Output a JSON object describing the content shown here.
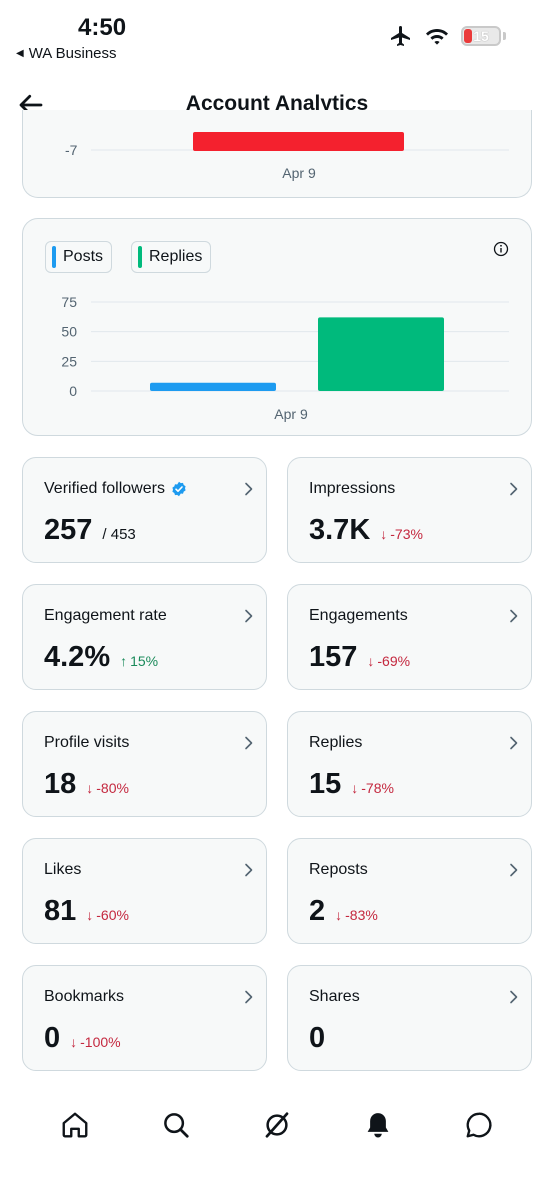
{
  "status_bar": {
    "time": "4:50",
    "back_app": "WA Business",
    "battery": "15"
  },
  "header": {
    "title": "Account Analytics"
  },
  "top_chart": {
    "tick_label": "-7",
    "x_label": "Apr 9",
    "bar_color": "#f4212e"
  },
  "chart_data": {
    "type": "bar",
    "categories": [
      "Apr 9"
    ],
    "series": [
      {
        "name": "Posts",
        "values": [
          7
        ],
        "color": "#1d9bf0"
      },
      {
        "name": "Replies",
        "values": [
          62
        ],
        "color": "#00ba7c"
      }
    ],
    "yticks": [
      "75",
      "50",
      "25",
      "0"
    ],
    "ylim": [
      0,
      75
    ],
    "legend": "top-left"
  },
  "metrics": [
    {
      "label": "Verified followers",
      "value": "257",
      "sub": "/ 453",
      "delta": "",
      "trend": "",
      "verified": true
    },
    {
      "label": "Impressions",
      "value": "3.7K",
      "sub": "",
      "delta": "-73%",
      "trend": "down"
    },
    {
      "label": "Engagement rate",
      "value": "4.2%",
      "sub": "",
      "delta": "15%",
      "trend": "up"
    },
    {
      "label": "Engagements",
      "value": "157",
      "sub": "",
      "delta": "-69%",
      "trend": "down"
    },
    {
      "label": "Profile visits",
      "value": "18",
      "sub": "",
      "delta": "-80%",
      "trend": "down"
    },
    {
      "label": "Replies",
      "value": "15",
      "sub": "",
      "delta": "-78%",
      "trend": "down"
    },
    {
      "label": "Likes",
      "value": "81",
      "sub": "",
      "delta": "-60%",
      "trend": "down"
    },
    {
      "label": "Reposts",
      "value": "2",
      "sub": "",
      "delta": "-83%",
      "trend": "down"
    },
    {
      "label": "Bookmarks",
      "value": "0",
      "sub": "",
      "delta": "-100%",
      "trend": "down"
    },
    {
      "label": "Shares",
      "value": "0",
      "sub": "",
      "delta": "",
      "trend": ""
    }
  ],
  "bottom_nav": [
    "home-icon",
    "search-icon",
    "grok-icon",
    "notifications-icon",
    "messages-icon"
  ],
  "colors": {
    "down": "#c4283f",
    "up": "#1a8a5a",
    "verified": "#1d9bf0"
  }
}
